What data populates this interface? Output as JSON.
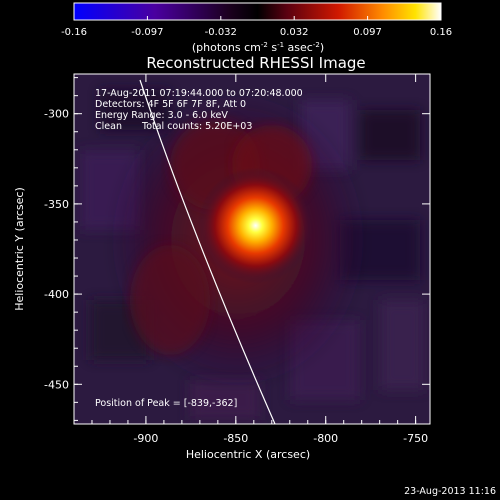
{
  "colorbar": {
    "ticks": [
      "-0.16",
      "-0.097",
      "-0.032",
      "0.032",
      "0.097",
      "0.16"
    ],
    "unit_label": "(photons cm",
    "unit_sup1": "-2",
    "unit_mid1": " s",
    "unit_sup2": "-1",
    "unit_mid2": " asec",
    "unit_sup3": "-2",
    "unit_end": ")"
  },
  "title": "Reconstructed RHESSI Image",
  "info": {
    "time_range": "17-Aug-2011 07:19:44.000 to 07:20:48.000",
    "detectors": "Detectors: 4F 5F 6F 7F 8F, Att 0",
    "energy": "Energy Range: 3.0 - 6.0 keV",
    "clean": "Clean",
    "counts": "Total counts: 5.20E+03"
  },
  "peak_text": "Position of Peak = [-839,-362]",
  "axes": {
    "xlabel": "Heliocentric X (arcsec)",
    "ylabel": "Heliocentric Y (arcsec)",
    "xticks": [
      "-900",
      "-850",
      "-800",
      "-750"
    ],
    "yticks": [
      "-300",
      "-350",
      "-400",
      "-450"
    ],
    "xrange": [
      -940,
      -742
    ],
    "yrange": [
      -472,
      -278
    ]
  },
  "image": {
    "peak_x": -839,
    "peak_y": -362,
    "colormap": [
      "#0000ff",
      "#000000",
      "#ff9000",
      "#ffff00",
      "#ffffff"
    ],
    "background": "#2a1438"
  },
  "footer_date": "23-Aug-2013 11:16"
}
